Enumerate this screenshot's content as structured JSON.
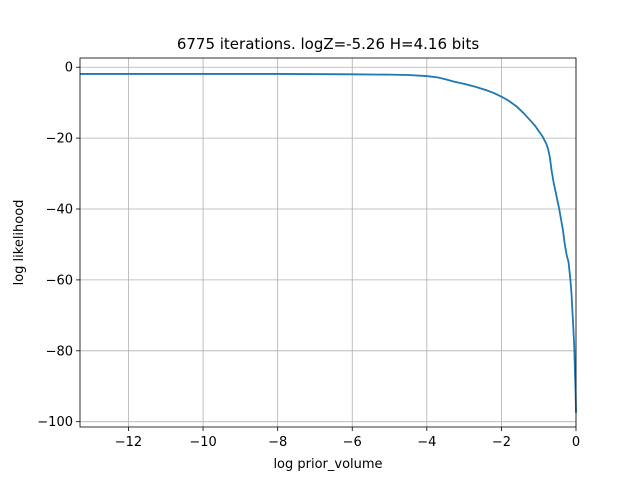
{
  "chart_data": {
    "type": "line",
    "title": "6775 iterations. logZ=-5.26 H=4.16 bits",
    "xlabel": "log prior_volume",
    "ylabel": "log likelihood",
    "xlim": [
      -13.3,
      0
    ],
    "ylim": [
      -101.5,
      2.6
    ],
    "x_ticks": [
      -12,
      -10,
      -8,
      -6,
      -4,
      -2,
      0
    ],
    "x_tick_labels": [
      "−12",
      "−10",
      "−8",
      "−6",
      "−4",
      "−2",
      "0"
    ],
    "y_ticks": [
      0,
      -20,
      -40,
      -60,
      -80,
      -100
    ],
    "y_tick_labels": [
      "0",
      "−20",
      "−40",
      "−60",
      "−80",
      "−100"
    ],
    "grid": true,
    "color": "#1f77b4",
    "series": [
      {
        "x": [
          -13.3,
          -12,
          -10,
          -8,
          -6,
          -5,
          -4.5,
          -4.0,
          -3.7,
          -3.5,
          -3.3,
          -3.0,
          -2.7,
          -2.4,
          -2.2,
          -2.0,
          -1.8,
          -1.6,
          -1.4,
          -1.2,
          -1.1,
          -1.0,
          -0.9,
          -0.8,
          -0.75,
          -0.7,
          -0.65,
          -0.6,
          -0.55,
          -0.5,
          -0.45,
          -0.4,
          -0.35,
          -0.3,
          -0.25,
          -0.2,
          -0.17,
          -0.15,
          -0.12,
          -0.1,
          -0.08,
          -0.05,
          -0.03,
          -0.01,
          0
        ],
        "y": [
          -1.9,
          -1.9,
          -1.9,
          -1.9,
          -2.0,
          -2.1,
          -2.2,
          -2.5,
          -2.9,
          -3.4,
          -4.0,
          -4.7,
          -5.5,
          -6.5,
          -7.3,
          -8.3,
          -9.5,
          -11.0,
          -13.0,
          -15.3,
          -16.5,
          -18.0,
          -19.5,
          -21.5,
          -23.0,
          -25.5,
          -29.5,
          -32.5,
          -35.0,
          -37.5,
          -40.0,
          -43.0,
          -46.0,
          -50.0,
          -53.0,
          -55.0,
          -58.0,
          -60.0,
          -64.0,
          -68.0,
          -72.0,
          -78.0,
          -85.0,
          -92.0,
          -97.5
        ]
      }
    ]
  }
}
